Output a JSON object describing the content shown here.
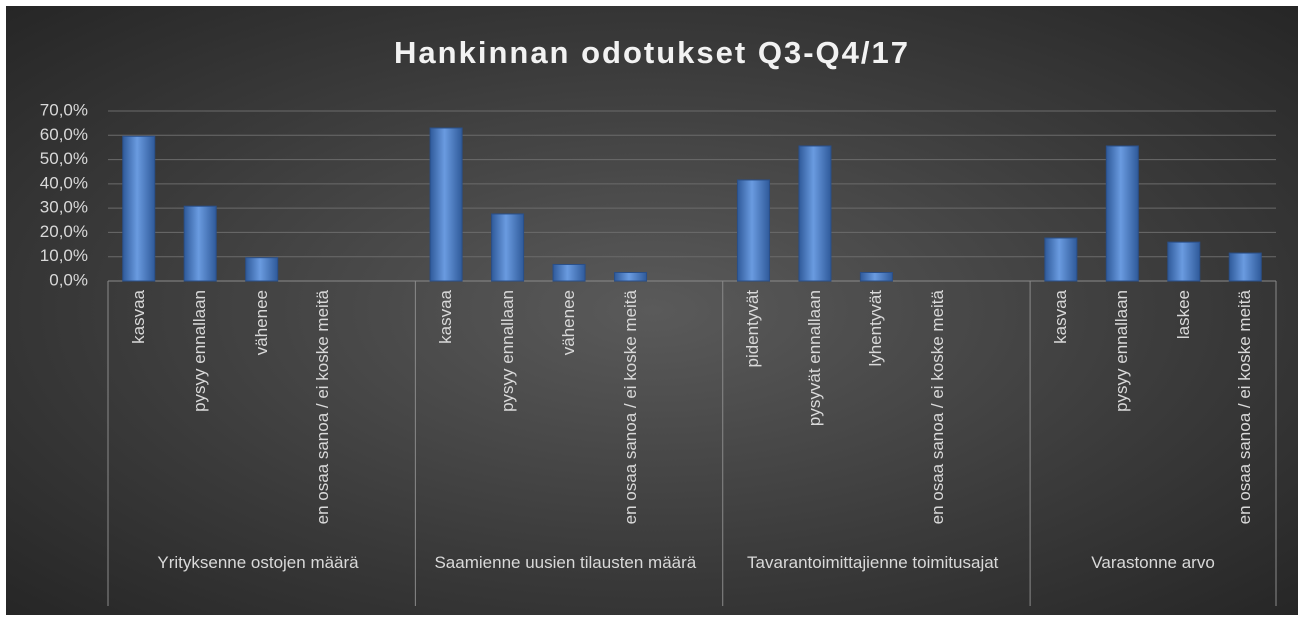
{
  "chart_data": {
    "type": "bar",
    "title": "Hankinnan odotukset Q3-Q4/17",
    "color": "#4f81c9",
    "ylim": [
      0,
      70
    ],
    "yticks": [
      {
        "value": 0,
        "label": "0,0%"
      },
      {
        "value": 10,
        "label": "10,0%"
      },
      {
        "value": 20,
        "label": "20,0%"
      },
      {
        "value": 30,
        "label": "30,0%"
      },
      {
        "value": 40,
        "label": "40,0%"
      },
      {
        "value": 50,
        "label": "50,0%"
      },
      {
        "value": 60,
        "label": "60,0%"
      },
      {
        "value": 70,
        "label": "70,0%"
      }
    ],
    "grid": true,
    "groups": [
      {
        "name": "Yrityksenne ostojen määrä",
        "categories": [
          "kasvaa",
          "pysyy ennallaan",
          "vähenee",
          "en osaa sanoa / ei koske meitä",
          null
        ],
        "values": [
          59.6,
          30.8,
          9.6,
          0,
          null
        ]
      },
      {
        "name": "Saamienne uusien tilausten määrä",
        "categories": [
          "kasvaa",
          "pysyy ennallaan",
          "vähenee",
          "en osaa sanoa / ei koske meitä",
          null
        ],
        "values": [
          63.0,
          27.6,
          6.8,
          3.5,
          null
        ]
      },
      {
        "name": "Tavarantoimittajienne toimitusajat",
        "categories": [
          "pidentyvät",
          "pysyvät ennallaan",
          "lyhentyvät",
          "en osaa sanoa / ei koske meitä",
          null
        ],
        "values": [
          41.6,
          55.6,
          3.5,
          0,
          null
        ]
      },
      {
        "name": "Varastonne arvo",
        "categories": [
          "kasvaa",
          "pysyy ennallaan",
          "laskee",
          "en osaa sanoa / ei koske meitä"
        ],
        "values": [
          17.7,
          55.6,
          16.0,
          11.5
        ]
      }
    ]
  }
}
